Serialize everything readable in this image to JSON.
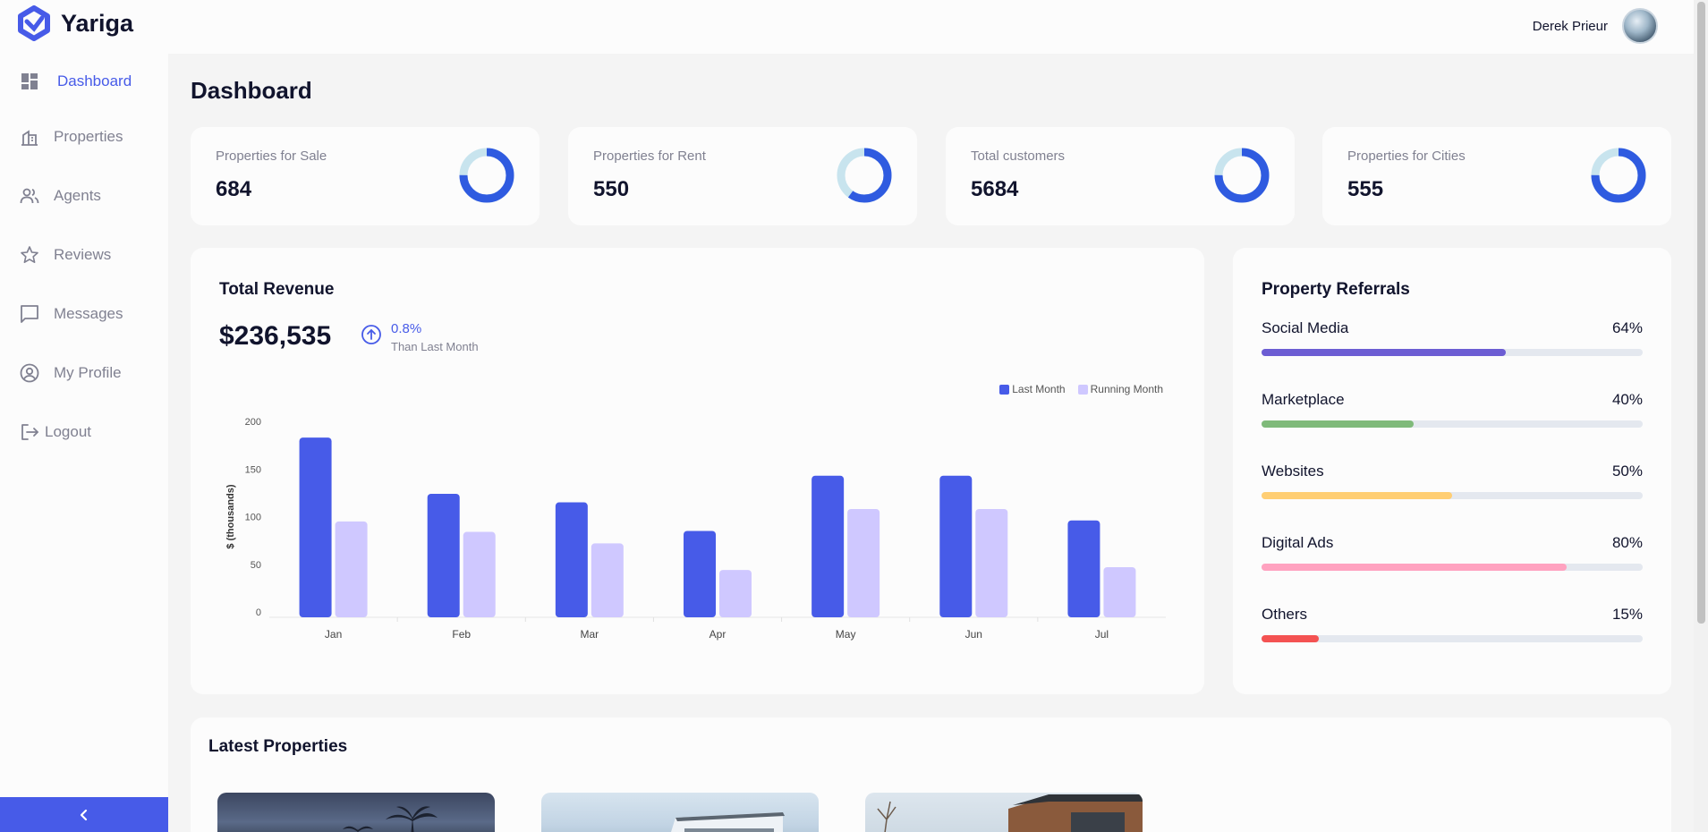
{
  "app": {
    "name": "Yariga"
  },
  "user": {
    "name": "Derek Prieur"
  },
  "sidebar": {
    "items": [
      {
        "label": "Dashboard",
        "icon": "dashboard-icon",
        "active": true
      },
      {
        "label": "Properties",
        "icon": "building-icon",
        "active": false
      },
      {
        "label": "Agents",
        "icon": "people-icon",
        "active": false
      },
      {
        "label": "Reviews",
        "icon": "star-icon",
        "active": false
      },
      {
        "label": "Messages",
        "icon": "chat-icon",
        "active": false
      },
      {
        "label": "My Profile",
        "icon": "account-circle-icon",
        "active": false
      },
      {
        "label": "Logout",
        "icon": "logout-icon",
        "active": false
      }
    ],
    "collapse_icon": "chevron-left-icon"
  },
  "page": {
    "title": "Dashboard"
  },
  "stats": [
    {
      "label": "Properties for Sale",
      "value": "684",
      "donut_fill": 0.75
    },
    {
      "label": "Properties for Rent",
      "value": "550",
      "donut_fill": 0.6
    },
    {
      "label": "Total customers",
      "value": "5684",
      "donut_fill": 0.75
    },
    {
      "label": "Properties for Cities",
      "value": "555",
      "donut_fill": 0.75
    }
  ],
  "revenue": {
    "title": "Total Revenue",
    "amount": "$236,535",
    "change_pct": "0.8%",
    "change_sub": "Than Last Month",
    "change_icon": "arrow-up-circle-icon"
  },
  "chart_data": {
    "type": "bar",
    "categories": [
      "Jan",
      "Feb",
      "Mar",
      "Apr",
      "May",
      "Jun",
      "Jul"
    ],
    "series": [
      {
        "name": "Last Month",
        "values": [
          183,
          124,
          115,
          85,
          143,
          143,
          96
        ],
        "color": "#475be8"
      },
      {
        "name": "Running Month",
        "values": [
          95,
          84,
          72,
          44,
          108,
          108,
          47
        ],
        "color": "#cfc8ff"
      }
    ],
    "ylabel": "$ (thousands)",
    "yticks": [
      0,
      50,
      100,
      150,
      200
    ],
    "ylim": [
      0,
      200
    ],
    "legend_position": "top-right",
    "grid": false
  },
  "referrals": {
    "title": "Property Referrals",
    "items": [
      {
        "label": "Social Media",
        "percent": 64,
        "percent_text": "64%",
        "color": "#6c5dd3"
      },
      {
        "label": "Marketplace",
        "percent": 40,
        "percent_text": "40%",
        "color": "#7fba7a"
      },
      {
        "label": "Websites",
        "percent": 50,
        "percent_text": "50%",
        "color": "#ffce73"
      },
      {
        "label": "Digital Ads",
        "percent": 80,
        "percent_text": "80%",
        "color": "#ffa2c0"
      },
      {
        "label": "Others",
        "percent": 15,
        "percent_text": "15%",
        "color": "#f45252"
      }
    ]
  },
  "latest": {
    "title": "Latest Properties"
  },
  "colors": {
    "accent": "#475be8",
    "donut_track": "#c8e4ee",
    "text_dark": "#11142d",
    "text_muted": "#808191"
  }
}
